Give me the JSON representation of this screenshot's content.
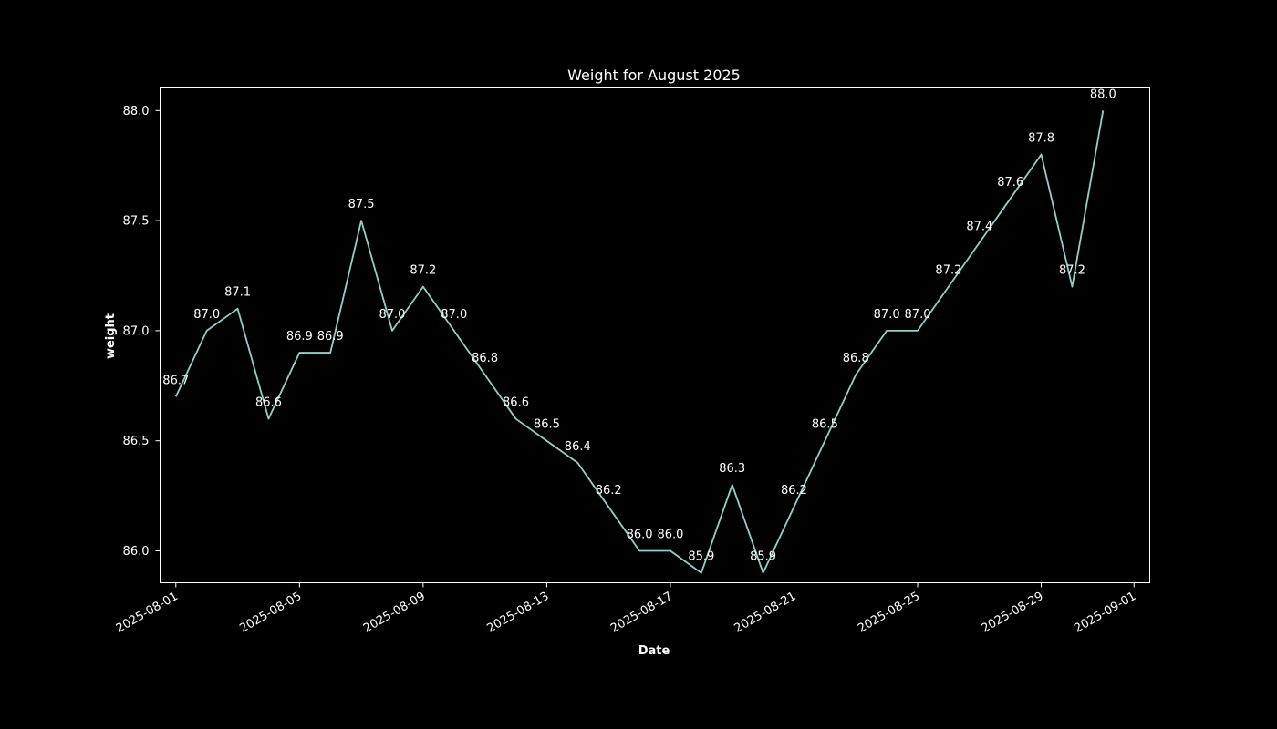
{
  "chart_data": {
    "type": "line",
    "title": "Weight for August 2025",
    "xlabel": "Date",
    "ylabel": "weight",
    "x": [
      "2025-08-01",
      "2025-08-02",
      "2025-08-03",
      "2025-08-04",
      "2025-08-05",
      "2025-08-06",
      "2025-08-07",
      "2025-08-08",
      "2025-08-09",
      "2025-08-10",
      "2025-08-11",
      "2025-08-12",
      "2025-08-13",
      "2025-08-14",
      "2025-08-15",
      "2025-08-16",
      "2025-08-17",
      "2025-08-18",
      "2025-08-19",
      "2025-08-20",
      "2025-08-21",
      "2025-08-22",
      "2025-08-23",
      "2025-08-24",
      "2025-08-25",
      "2025-08-26",
      "2025-08-27",
      "2025-08-28",
      "2025-08-29",
      "2025-08-30",
      "2025-08-31"
    ],
    "series": [
      {
        "values": [
          86.7,
          87.0,
          87.1,
          86.6,
          86.9,
          86.9,
          87.5,
          87.0,
          87.2,
          87.0,
          86.8,
          86.6,
          86.5,
          86.4,
          86.2,
          86.0,
          86.0,
          85.9,
          86.3,
          85.9,
          86.2,
          86.5,
          86.8,
          87.0,
          87.0,
          87.2,
          87.4,
          87.6,
          87.8,
          87.2,
          88.0
        ],
        "labels": [
          "86.7",
          "87.0",
          "87.1",
          "86.6",
          "86.9",
          "86.9",
          "87.5",
          "87.0",
          "87.2",
          "87.0",
          "86.8",
          "86.6",
          "86.5",
          "86.4",
          "86.2",
          "86.0",
          "86.0",
          "85.9",
          "86.3",
          "85.9",
          "86.2",
          "86.5",
          "86.8",
          "87.0",
          "87.0",
          "87.2",
          "87.4",
          "87.6",
          "87.8",
          "87.2",
          "88.0"
        ],
        "color": "#8dd3c7"
      }
    ],
    "x_ticks": [
      "2025-08-01",
      "2025-08-05",
      "2025-08-09",
      "2025-08-13",
      "2025-08-17",
      "2025-08-21",
      "2025-08-25",
      "2025-08-29",
      "2025-09-01"
    ],
    "y_ticks": [
      "86.0",
      "86.5",
      "87.0",
      "87.5",
      "88.0"
    ],
    "xlim": [
      "2025-07-31",
      "2025-09-01"
    ],
    "ylim": [
      85.8,
      88.1
    ],
    "grid": false,
    "legend": "none",
    "background": "#000000",
    "foreground": "#ffffff"
  }
}
